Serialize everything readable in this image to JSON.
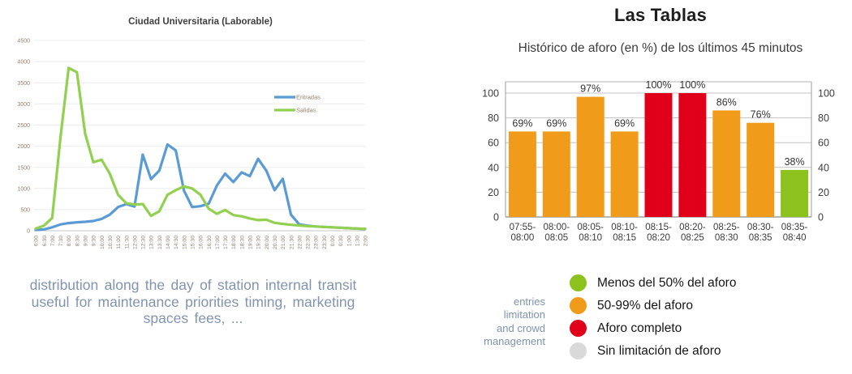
{
  "chart_data": [
    {
      "name": "ciudad-universitaria",
      "type": "line",
      "title": "Ciudad Universitaria (Laborable)",
      "x": [
        "6:00",
        "6:30",
        "7:00",
        "7:30",
        "8:00",
        "8:30",
        "9:00",
        "9:30",
        "10:00",
        "10:30",
        "11:00",
        "11:30",
        "12:00",
        "12:30",
        "13:00",
        "13:30",
        "14:00",
        "14:30",
        "15:00",
        "15:30",
        "16:00",
        "16:30",
        "17:00",
        "17:30",
        "18:00",
        "18:30",
        "19:00",
        "19:30",
        "20:00",
        "20:30",
        "21:00",
        "21:30",
        "22:00",
        "22:30",
        "23:00",
        "23:30",
        "0:00",
        "0:30",
        "1:00",
        "1:30",
        "2:00"
      ],
      "yticks": [
        0,
        500,
        1000,
        1500,
        2000,
        2500,
        3000,
        3500,
        4000,
        4500
      ],
      "ylim": [
        0,
        4500
      ],
      "grid": true,
      "legend_position": "inside-right",
      "axis_label_color": "#97806C",
      "series": [
        {
          "name": "Entradas",
          "color": "#5B9BD5",
          "values": [
            20,
            30,
            80,
            150,
            180,
            200,
            210,
            230,
            280,
            380,
            560,
            630,
            570,
            1800,
            1220,
            1420,
            2040,
            1900,
            950,
            560,
            580,
            640,
            1070,
            1350,
            1150,
            1380,
            1290,
            1700,
            1420,
            960,
            1230,
            380,
            150,
            120,
            100,
            90,
            80,
            70,
            60,
            50,
            40
          ]
        },
        {
          "name": "Salidas",
          "color": "#92D050",
          "values": [
            50,
            120,
            300,
            2200,
            3850,
            3750,
            2300,
            1620,
            1680,
            1350,
            850,
            650,
            620,
            630,
            350,
            460,
            850,
            960,
            1050,
            1000,
            850,
            520,
            400,
            490,
            370,
            340,
            290,
            250,
            260,
            185,
            160,
            140,
            125,
            110,
            100,
            90,
            80,
            70,
            60,
            50,
            45
          ]
        }
      ]
    },
    {
      "name": "las-tablas-aforo",
      "type": "bar",
      "title": "Las Tablas",
      "subtitle": "Histórico de aforo (en %) de los últimos 45 minutos",
      "categories": [
        [
          "07:55-",
          "08:00"
        ],
        [
          "08:00-",
          "08:05"
        ],
        [
          "08:05-",
          "08:10"
        ],
        [
          "08:10-",
          "08:15"
        ],
        [
          "08:15-",
          "08:20"
        ],
        [
          "08:20-",
          "08:25"
        ],
        [
          "08:25-",
          "08:30"
        ],
        [
          "08:30-",
          "08:35"
        ],
        [
          "08:35-",
          "08:40"
        ]
      ],
      "values": [
        69,
        69,
        97,
        69,
        100,
        100,
        86,
        76,
        38
      ],
      "bar_labels": [
        "69%",
        "69%",
        "97%",
        "69%",
        "100%",
        "100%",
        "86%",
        "76%",
        "38%"
      ],
      "bar_colors": [
        "#F09C1A",
        "#F09C1A",
        "#F09C1A",
        "#F09C1A",
        "#E00019",
        "#E00019",
        "#F09C1A",
        "#F09C1A",
        "#8CC21E"
      ],
      "yticks": [
        0,
        20,
        40,
        60,
        80,
        100
      ],
      "ylim": [
        0,
        100
      ],
      "dual_axis_labels": true,
      "grid": true,
      "legend": [
        {
          "label": "Menos del 50% del aforo",
          "color": "#8CC21E"
        },
        {
          "label": "50-99% del aforo",
          "color": "#F09C1A"
        },
        {
          "label": "Aforo completo",
          "color": "#E00019"
        },
        {
          "label": "Sin limitación de aforo",
          "color": "#D9D9D9"
        }
      ]
    }
  ],
  "captions": {
    "left_lines": [
      "distribution along the day of station internal transit",
      "useful for maintenance priorities timing, marketing",
      "spaces fees, ..."
    ],
    "side_lines": [
      "entries",
      "limitation",
      "and crowd",
      "management"
    ]
  },
  "colors": {
    "caption_text": "#8294AF",
    "side_caption_text": "#7E93AD",
    "bar_axis_text": "#3C3C3C"
  }
}
